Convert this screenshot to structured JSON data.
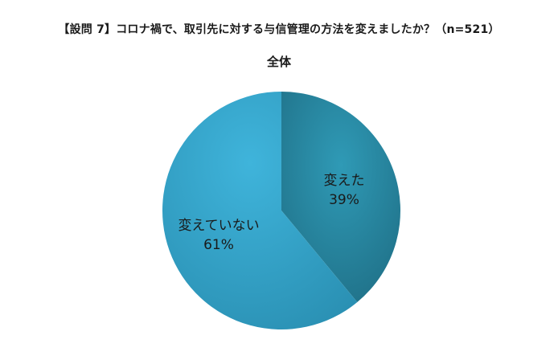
{
  "question": "【設問 7】コロナ禍で、取引先に対する与信管理の方法を変えましたか？（n=521）",
  "chart_data": {
    "type": "pie",
    "title": "全体",
    "slices": [
      {
        "label": "変えた",
        "value": 39,
        "value_label": "39%",
        "color": "#2a8ea8"
      },
      {
        "label": "変えていない",
        "value": 61,
        "value_label": "61%",
        "color": "#35a6cc"
      }
    ]
  }
}
